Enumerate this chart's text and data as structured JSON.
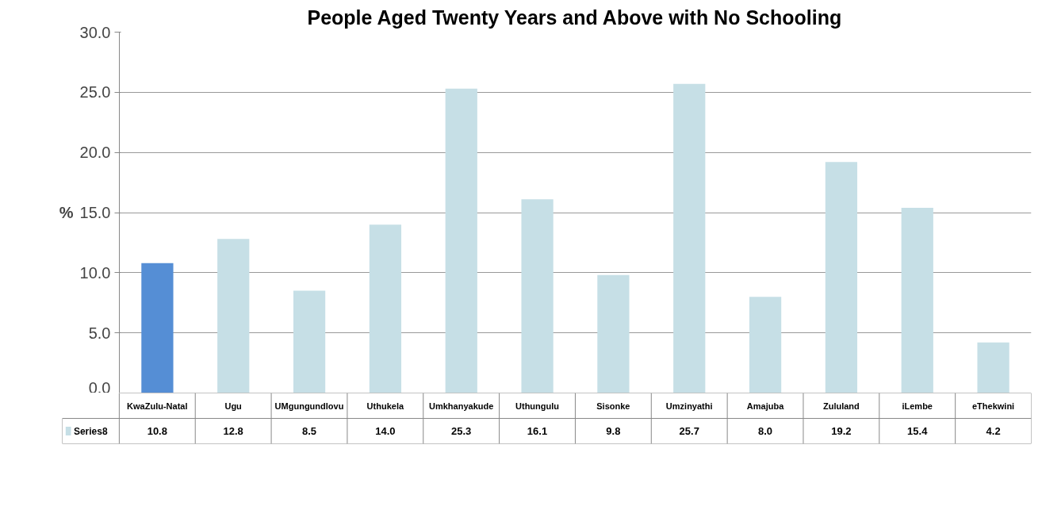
{
  "chart_data": {
    "type": "bar",
    "title": "People Aged Twenty Years and Above with No Schooling",
    "ylabel": "%",
    "categories": [
      "KwaZulu-Natal",
      "Ugu",
      "UMgungundlovu",
      "Uthukela",
      "Umkhanyakude",
      "Uthungulu",
      "Sisonke",
      "Umzinyathi",
      "Amajuba",
      "Zululand",
      "iLembe",
      "eThekwini"
    ],
    "series": [
      {
        "name": "Series8",
        "color": "#c6dfe6",
        "colors": [
          "#558ed5",
          "#c6dfe6",
          "#c6dfe6",
          "#c6dfe6",
          "#c6dfe6",
          "#c6dfe6",
          "#c6dfe6",
          "#c6dfe6",
          "#c6dfe6",
          "#c6dfe6",
          "#c6dfe6",
          "#c6dfe6"
        ],
        "values": [
          10.8,
          12.8,
          8.5,
          14.0,
          25.3,
          16.1,
          9.8,
          25.7,
          8.0,
          19.2,
          15.4,
          4.2
        ],
        "value_labels": [
          "10.8",
          "12.8",
          "8.5",
          "14.0",
          "25.3",
          "16.1",
          "9.8",
          "25.7",
          "8.0",
          "19.2",
          "15.4",
          "4.2"
        ]
      }
    ],
    "ylim": [
      0,
      30
    ],
    "yticks": [
      {
        "value": 0,
        "label": "0.0"
      },
      {
        "value": 5,
        "label": "5.0"
      },
      {
        "value": 10,
        "label": "10.0"
      },
      {
        "value": 15,
        "label": "15.0"
      },
      {
        "value": 20,
        "label": "20.0"
      },
      {
        "value": 25,
        "label": "25.0"
      },
      {
        "value": 30,
        "label": "30.0"
      }
    ],
    "grid": "y",
    "legend": "bottom"
  }
}
